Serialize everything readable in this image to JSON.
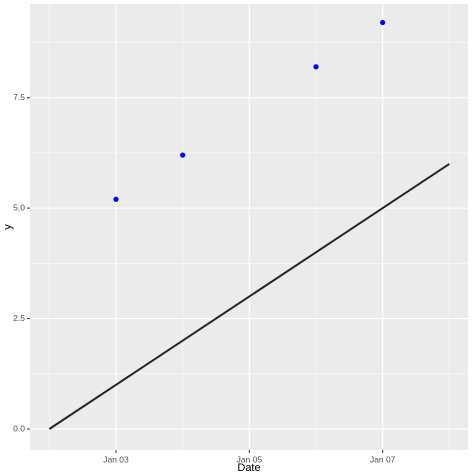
{
  "chart_data": {
    "type": "scatter",
    "x_label": "Date",
    "y_label": "y",
    "xlim": [
      1.71,
      8.28
    ],
    "ylim": [
      -0.475,
      9.62
    ],
    "xticks": [
      {
        "value": 3,
        "label": "Jan 03"
      },
      {
        "value": 5,
        "label": "Jan 05"
      },
      {
        "value": 7,
        "label": "Jan 07"
      }
    ],
    "yticks": [
      {
        "value": 0,
        "label": "0.0"
      },
      {
        "value": 2.5,
        "label": "2.5"
      },
      {
        "value": 5,
        "label": "5.0"
      },
      {
        "value": 7.5,
        "label": "7.5"
      }
    ],
    "x_minor_ticks": [
      2,
      4,
      6,
      8
    ],
    "y_minor_ticks": [
      1.25,
      3.75,
      6.25,
      8.75
    ],
    "grid": true,
    "series": [
      {
        "type": "line",
        "color": "#262626",
        "x": [
          2,
          8
        ],
        "values": [
          0,
          6
        ]
      },
      {
        "type": "scatter",
        "color": "#0000ff",
        "x": [
          3,
          4,
          6,
          7
        ],
        "values": [
          5.2,
          6.2,
          8.2,
          9.2
        ]
      }
    ]
  }
}
